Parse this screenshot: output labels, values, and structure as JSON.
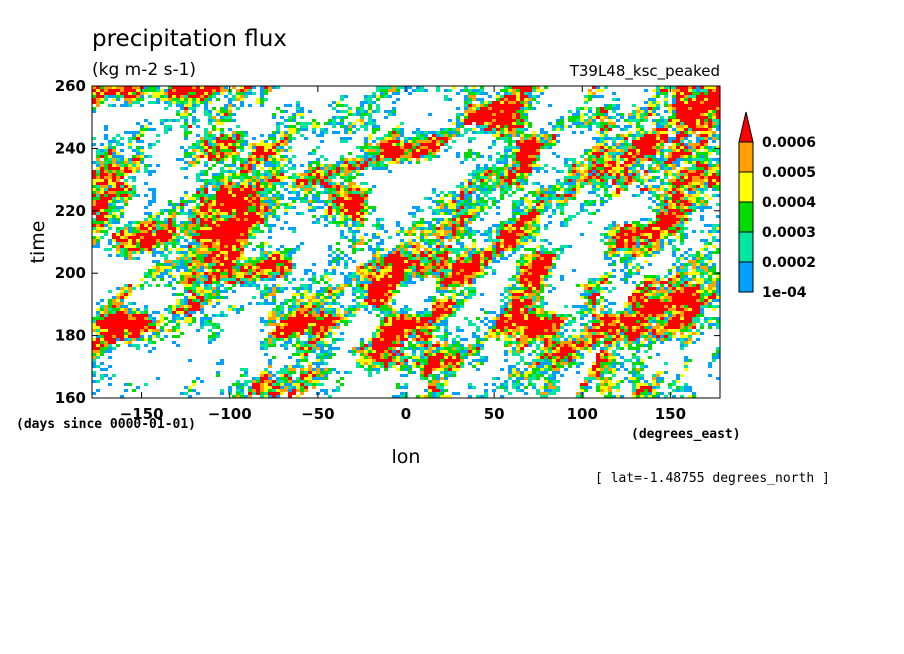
{
  "chart_data": {
    "type": "heatmap",
    "title": "precipitation flux",
    "subtitle": "(kg m-2 s-1)",
    "run_label": "T39L48_ksc_peaked",
    "xlabel": "lon",
    "ylabel": "time",
    "x_units": "(degrees_east)",
    "y_units": "(days since 0000-01-01)",
    "annotation": "[ lat=-1.48755 degrees_north ]",
    "xlim": [
      -178.125,
      178.125
    ],
    "ylim": [
      160,
      260
    ],
    "x_ticks": [
      -150,
      -100,
      -50,
      0,
      50,
      100,
      150
    ],
    "y_ticks": [
      160,
      180,
      200,
      220,
      240,
      260
    ],
    "x_tick_labels": [
      "−150",
      "−100",
      "−50",
      "0",
      "50",
      "100",
      "150"
    ],
    "y_tick_labels": [
      "160",
      "180",
      "200",
      "220",
      "240",
      "260"
    ],
    "colorbar": {
      "levels": [
        0.0001,
        0.0002,
        0.0003,
        0.0004,
        0.0005,
        0.0006
      ],
      "level_labels": [
        "1e-04",
        "0.0002",
        "0.0003",
        "0.0004",
        "0.0005",
        "0.0006"
      ],
      "colors": [
        "#00a0ff",
        "#00e6a0",
        "#00dc00",
        "#ffff00",
        "#ffa000",
        "#ff0000"
      ],
      "extend": "max"
    },
    "grid": false,
    "legend_position": "right"
  }
}
